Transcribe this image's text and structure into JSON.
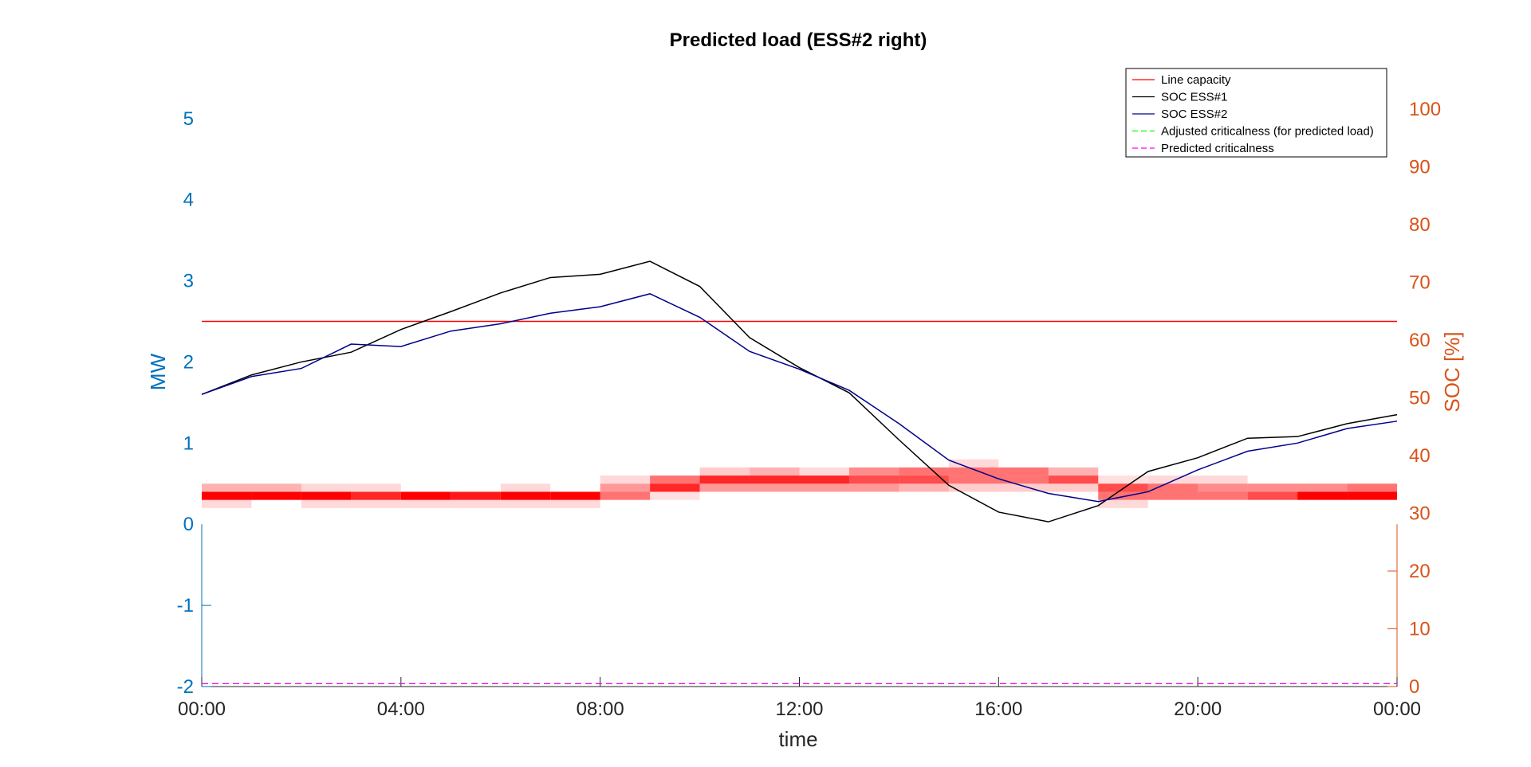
{
  "chart_data": {
    "type": "line",
    "title": "Predicted load (ESS#2 right)",
    "xlabel": "time",
    "ylabel_left": "MW",
    "ylabel_right": "SOC [%]",
    "x_ticks": [
      "00:00",
      "04:00",
      "08:00",
      "12:00",
      "16:00",
      "20:00",
      "00:00"
    ],
    "x_range_hours": [
      0,
      24
    ],
    "ylim_left": [
      -2,
      5.4
    ],
    "yticks_left": [
      -2,
      -1,
      0,
      1,
      2,
      3,
      4,
      5
    ],
    "ylim_right": [
      0,
      104
    ],
    "yticks_right": [
      0,
      10,
      20,
      30,
      40,
      50,
      60,
      70,
      80,
      90,
      100
    ],
    "hours": [
      0,
      1,
      2,
      3,
      4,
      5,
      6,
      7,
      8,
      9,
      10,
      11,
      12,
      13,
      14,
      15,
      16,
      17,
      18,
      19,
      20,
      21,
      22,
      23,
      24
    ],
    "series": [
      {
        "name": "Line capacity",
        "axis": "left",
        "color": "#ff0000",
        "style": "solid",
        "values": [
          2.5,
          2.5,
          2.5,
          2.5,
          2.5,
          2.5,
          2.5,
          2.5,
          2.5,
          2.5,
          2.5,
          2.5,
          2.5,
          2.5,
          2.5,
          2.5,
          2.5,
          2.5,
          2.5,
          2.5,
          2.5,
          2.5,
          2.5,
          2.5,
          2.5
        ]
      },
      {
        "name": "SOC ESS#1",
        "axis": "left",
        "color": "#000000",
        "style": "solid",
        "values": [
          1.6,
          1.84,
          2.0,
          2.12,
          2.4,
          2.62,
          2.85,
          3.04,
          3.08,
          3.24,
          2.93,
          2.3,
          1.93,
          1.62,
          1.04,
          0.48,
          0.15,
          0.03,
          0.23,
          0.65,
          0.82,
          1.06,
          1.08,
          1.24,
          1.35
        ]
      },
      {
        "name": "SOC ESS#2",
        "axis": "left",
        "color": "#00008b",
        "style": "solid",
        "values": [
          1.6,
          1.82,
          1.92,
          2.22,
          2.19,
          2.38,
          2.47,
          2.6,
          2.68,
          2.84,
          2.55,
          2.13,
          1.91,
          1.65,
          1.24,
          0.79,
          0.56,
          0.38,
          0.28,
          0.4,
          0.67,
          0.9,
          1.0,
          1.18,
          1.27
        ]
      },
      {
        "name": "Adjusted criticalness (for predicted load)",
        "axis": "right",
        "color": "#00ff00",
        "style": "dashed",
        "values": [
          0.5,
          0.5,
          0.5,
          0.5,
          0.5,
          0.5,
          0.5,
          0.5,
          0.5,
          0.5,
          0.5,
          0.5,
          0.5,
          0.5,
          0.5,
          0.5,
          0.5,
          0.5,
          0.5,
          0.5,
          0.5,
          0.5,
          0.5,
          0.5,
          0.5
        ]
      },
      {
        "name": "Predicted criticalness",
        "axis": "right",
        "color": "#ff00ff",
        "style": "dashed",
        "values": [
          0.5,
          0.5,
          0.5,
          0.5,
          0.5,
          0.5,
          0.5,
          0.5,
          0.5,
          0.5,
          0.5,
          0.5,
          0.5,
          0.5,
          0.5,
          0.5,
          0.5,
          0.5,
          0.5,
          0.5,
          0.5,
          0.5,
          0.5,
          0.5,
          0.5
        ]
      }
    ],
    "load_distribution": {
      "description_rows": "per hour interval, stacked load bands (MW) with probability",
      "cells": [
        [
          [
            0.2,
            0.3,
            0.15
          ],
          [
            0.3,
            0.4,
            1.0
          ],
          [
            0.4,
            0.5,
            0.3
          ]
        ],
        [
          [
            0.3,
            0.4,
            1.0
          ],
          [
            0.4,
            0.5,
            0.3
          ]
        ],
        [
          [
            0.2,
            0.3,
            0.15
          ],
          [
            0.3,
            0.4,
            1.0
          ],
          [
            0.4,
            0.5,
            0.15
          ]
        ],
        [
          [
            0.2,
            0.3,
            0.15
          ],
          [
            0.3,
            0.4,
            0.85
          ],
          [
            0.4,
            0.5,
            0.15
          ]
        ],
        [
          [
            0.2,
            0.3,
            0.15
          ],
          [
            0.3,
            0.4,
            1.0
          ]
        ],
        [
          [
            0.2,
            0.3,
            0.15
          ],
          [
            0.3,
            0.4,
            0.9
          ]
        ],
        [
          [
            0.2,
            0.3,
            0.15
          ],
          [
            0.3,
            0.4,
            1.0
          ],
          [
            0.4,
            0.5,
            0.15
          ]
        ],
        [
          [
            0.2,
            0.3,
            0.15
          ],
          [
            0.3,
            0.4,
            1.0
          ]
        ],
        [
          [
            0.3,
            0.4,
            0.55
          ],
          [
            0.4,
            0.5,
            0.4
          ],
          [
            0.5,
            0.6,
            0.15
          ]
        ],
        [
          [
            0.3,
            0.4,
            0.12
          ],
          [
            0.4,
            0.5,
            0.85
          ],
          [
            0.5,
            0.6,
            0.55
          ]
        ],
        [
          [
            0.4,
            0.5,
            0.4
          ],
          [
            0.5,
            0.6,
            0.85
          ],
          [
            0.6,
            0.7,
            0.2
          ]
        ],
        [
          [
            0.4,
            0.5,
            0.4
          ],
          [
            0.5,
            0.6,
            0.85
          ],
          [
            0.6,
            0.7,
            0.3
          ]
        ],
        [
          [
            0.4,
            0.5,
            0.4
          ],
          [
            0.5,
            0.6,
            0.85
          ],
          [
            0.6,
            0.7,
            0.15
          ]
        ],
        [
          [
            0.4,
            0.5,
            0.4
          ],
          [
            0.5,
            0.6,
            0.7
          ],
          [
            0.6,
            0.7,
            0.45
          ]
        ],
        [
          [
            0.4,
            0.5,
            0.3
          ],
          [
            0.5,
            0.6,
            0.7
          ],
          [
            0.6,
            0.7,
            0.55
          ]
        ],
        [
          [
            0.4,
            0.5,
            0.2
          ],
          [
            0.5,
            0.6,
            0.55
          ],
          [
            0.6,
            0.7,
            0.55
          ],
          [
            0.7,
            0.8,
            0.15
          ]
        ],
        [
          [
            0.4,
            0.5,
            0.2
          ],
          [
            0.5,
            0.6,
            0.55
          ],
          [
            0.6,
            0.7,
            0.55
          ]
        ],
        [
          [
            0.4,
            0.5,
            0.2
          ],
          [
            0.5,
            0.6,
            0.7
          ],
          [
            0.6,
            0.7,
            0.3
          ]
        ],
        [
          [
            0.2,
            0.3,
            0.15
          ],
          [
            0.3,
            0.4,
            0.55
          ],
          [
            0.4,
            0.5,
            0.7
          ],
          [
            0.5,
            0.6,
            0.12
          ]
        ],
        [
          [
            0.3,
            0.4,
            0.55
          ],
          [
            0.4,
            0.5,
            0.55
          ],
          [
            0.5,
            0.6,
            0.15
          ]
        ],
        [
          [
            0.3,
            0.4,
            0.55
          ],
          [
            0.4,
            0.5,
            0.45
          ],
          [
            0.5,
            0.6,
            0.15
          ]
        ],
        [
          [
            0.3,
            0.4,
            0.7
          ],
          [
            0.4,
            0.5,
            0.45
          ]
        ],
        [
          [
            0.3,
            0.4,
            1.0
          ],
          [
            0.4,
            0.5,
            0.45
          ]
        ],
        [
          [
            0.3,
            0.4,
            1.0
          ],
          [
            0.4,
            0.5,
            0.55
          ]
        ]
      ]
    },
    "legend": {
      "position": "top-right",
      "entries": [
        "Line capacity",
        "SOC ESS#1",
        "SOC ESS#2",
        "Adjusted criticalness (for predicted load)",
        "Predicted criticalness"
      ]
    },
    "grid": false
  }
}
